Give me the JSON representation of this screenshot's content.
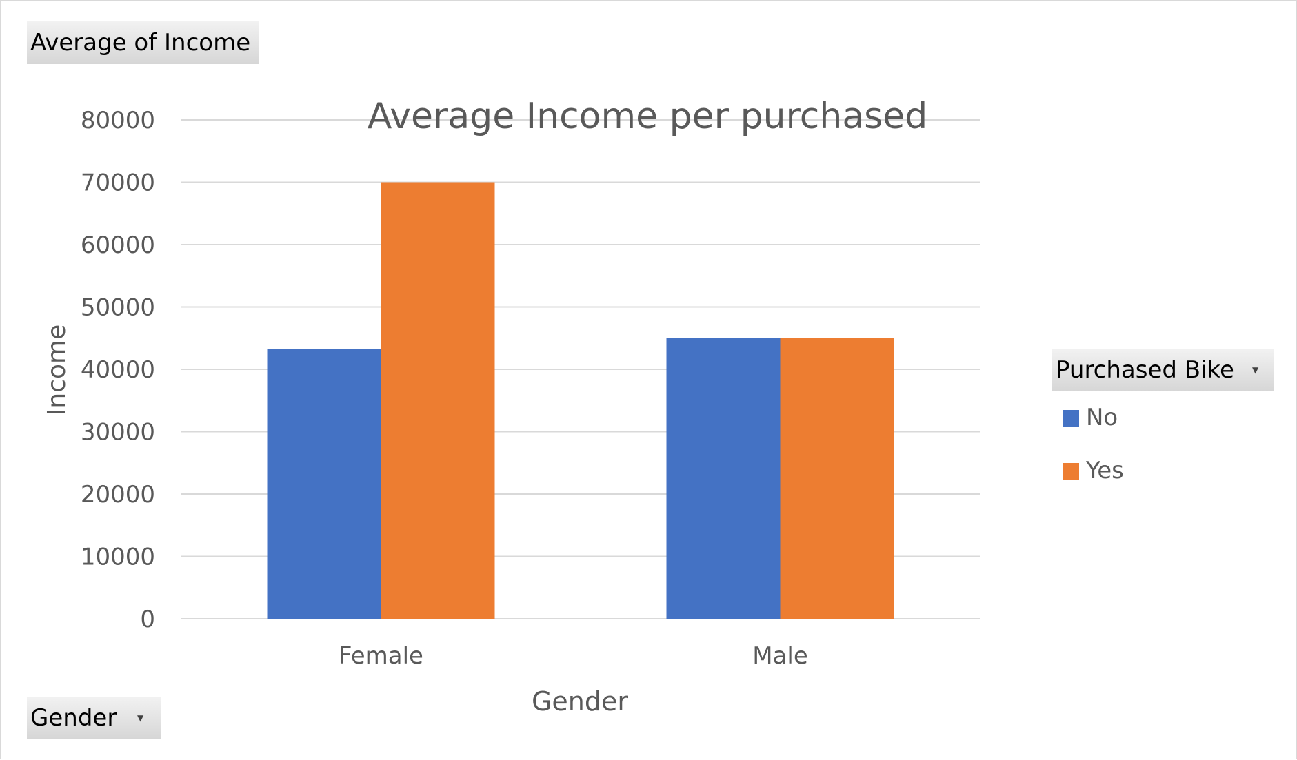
{
  "field_buttons": {
    "values": "Average of Income",
    "axis": "Gender",
    "legend": "Purchased Bike",
    "dropdown_icon": "triangle-down-icon"
  },
  "colors": {
    "no": "#4472c4",
    "yes": "#ed7d31",
    "gridline": "#d9d9d9",
    "text": "#595959"
  },
  "chart_data": {
    "type": "bar",
    "title": "Average Income per purchased",
    "xlabel": "Gender",
    "ylabel": "Income",
    "categories": [
      "Female",
      "Male"
    ],
    "series": [
      {
        "name": "No",
        "color": "#4472c4",
        "values": [
          43300,
          45000
        ]
      },
      {
        "name": "Yes",
        "color": "#ed7d31",
        "values": [
          70000,
          45000
        ]
      }
    ],
    "ylim": [
      0,
      80000
    ],
    "yticks": [
      "0",
      "10000",
      "20000",
      "30000",
      "40000",
      "50000",
      "60000",
      "70000",
      "80000"
    ],
    "grid": true,
    "legend_position": "right"
  }
}
